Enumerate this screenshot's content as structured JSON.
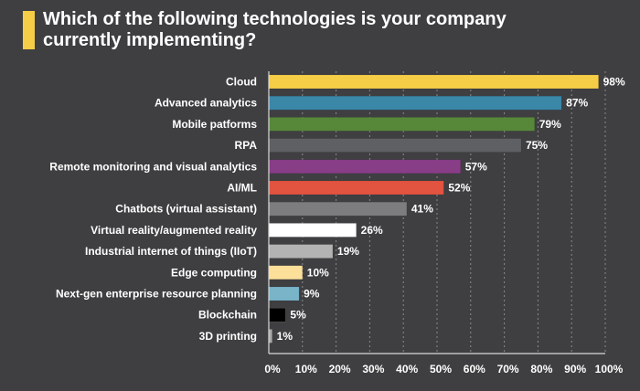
{
  "chart_data": {
    "type": "bar",
    "orientation": "horizontal",
    "title": "Which of the following technologies is your company currently implementing?",
    "xlabel": "",
    "ylabel": "",
    "xlim": [
      0,
      100
    ],
    "grid": "vertical dotted",
    "legend": "none",
    "x_ticks": [
      "0%",
      "10%",
      "20%",
      "30%",
      "40%",
      "50%",
      "60%",
      "70%",
      "80%",
      "90%",
      "100%"
    ],
    "categories": [
      "Cloud",
      "Advanced analytics",
      "Mobile patforms",
      "RPA",
      "Remote monitoring and visual analytics",
      "AI/ML",
      "Chatbots (virtual assistant)",
      "Virtual reality/augmented reality",
      "Industrial internet of things (IIoT)",
      "Edge computing",
      "Next-gen enterprise resource planning",
      "Blockchain",
      "3D printing"
    ],
    "values": [
      98,
      87,
      79,
      75,
      57,
      52,
      41,
      26,
      19,
      10,
      9,
      5,
      1
    ],
    "value_labels": [
      "98%",
      "87%",
      "79%",
      "75%",
      "57%",
      "52%",
      "41%",
      "26%",
      "19%",
      "10%",
      "9%",
      "5%",
      "1%"
    ],
    "colors": [
      "#f6cd46",
      "#3a87a8",
      "#57883a",
      "#5f6063",
      "#883d87",
      "#e25340",
      "#7d7d80",
      "#ffffff",
      "#b3b3b3",
      "#fce09a",
      "#79b4c9",
      "#000000",
      "#a9a9a9"
    ]
  },
  "title_accent_color": "#f6cd46"
}
